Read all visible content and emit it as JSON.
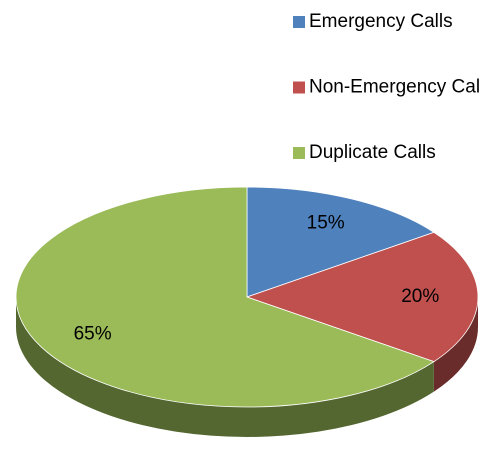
{
  "chart_data": {
    "type": "pie",
    "categories": [
      "Emergency Calls",
      "Non-Emergency Calls",
      "Duplicate Calls"
    ],
    "values": [
      15,
      20,
      65
    ],
    "value_labels": [
      "15%",
      "20%",
      "65%"
    ],
    "colors": [
      "#4f81bd",
      "#c0504d",
      "#9bbb59"
    ],
    "legend": "top"
  }
}
